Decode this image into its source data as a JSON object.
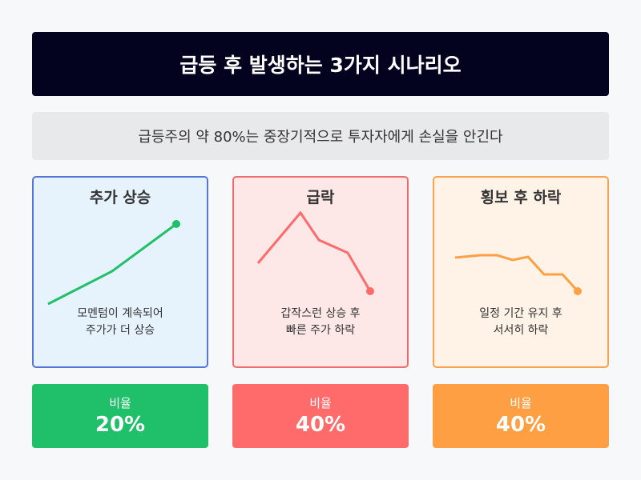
{
  "title": "급등 후 발생하는 3가지 시나리오",
  "subtitle": "급등주의 약 80%는 중장기적으로 투자자에게 손실을 안긴다",
  "scenarios": [
    {
      "title": "추가 상승",
      "desc1": "모멘텀이 계속되어",
      "desc2": "주가가 더 상승",
      "ratio_label": "비율",
      "ratio": "20%",
      "color": "#20c06a"
    },
    {
      "title": "급락",
      "desc1": "갑작스런 상승 후",
      "desc2": "빠른 주가 하락",
      "ratio_label": "비율",
      "ratio": "40%",
      "color": "#ff6b6b"
    },
    {
      "title": "횡보 후 하락",
      "desc1": "일정 기간 유지 후",
      "desc2": "서서히 하락",
      "ratio_label": "비율",
      "ratio": "40%",
      "color": "#ff9f43"
    }
  ]
}
